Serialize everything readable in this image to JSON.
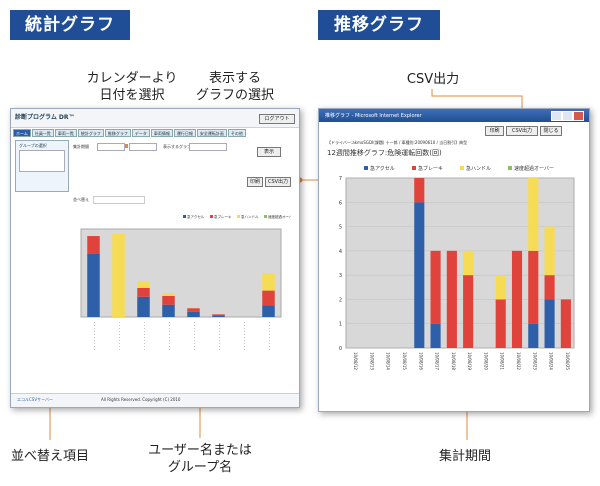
{
  "headers": {
    "stats": "統計グラフ",
    "trend": "推移グラフ"
  },
  "callouts": {
    "calendar": "カレンダーより\n日付を選択",
    "graph_select": "表示する\nグラフの選択",
    "csv": "CSV出力",
    "sort": "並べ替え項目",
    "user_group": "ユーザー名または\nグループ名",
    "period": "集計期間"
  },
  "left_window": {
    "app_title": "診断プログラム DR™",
    "logout": "ログアウト",
    "tabs": [
      "ホーム",
      "社員一覧",
      "車両一覧",
      "統計グラフ",
      "推移グラフ",
      "データ",
      "車両情報",
      "運行日報",
      "安全運転計画",
      "その他"
    ],
    "side_title": "グループの選択",
    "period_label": "集計期間",
    "graph_label": "表示するグラフ",
    "display_button": "表示",
    "print_button": "印刷",
    "csv_button": "CSV出力",
    "sort_label": "並べ替え",
    "footer_left": "エコルCSVサーバー",
    "footer_copy": "All Rights Reserved. Copyright (C) 2010"
  },
  "right_window": {
    "title": "推移グラフ - Microsoft Internet Explorer",
    "buttons": [
      "印刷",
      "CSV出力",
      "閉じる"
    ],
    "info": "【ドライバー:akmoSGDI(課題) 十一郎 / 車種別:20090610 / 当日割引】典型",
    "chart_title": "12週間推移グラフ:危険運転回数(回)"
  },
  "chart_data": [
    {
      "type": "bar",
      "stacked": true,
      "title": "",
      "legend_position": "top-right",
      "series": [
        {
          "name": "急アクセル",
          "color": "#2e5fa9",
          "values": [
            72,
            0,
            23,
            14,
            6,
            2,
            0,
            13
          ]
        },
        {
          "name": "急ブレーキ",
          "color": "#e0433b",
          "values": [
            20,
            0,
            10,
            10,
            4,
            1,
            0,
            17
          ]
        },
        {
          "name": "急ハンドル",
          "color": "#f6db55",
          "values": [
            0,
            95,
            7,
            3,
            1,
            0,
            0,
            20
          ]
        },
        {
          "name": "速度超過オーバー",
          "color": "#8dc05a",
          "values": [
            0,
            0,
            0,
            0,
            0,
            0,
            0,
            0
          ]
        }
      ]
    },
    {
      "type": "bar",
      "stacked": true,
      "title": "12週間推移グラフ:危険運転回数(回)",
      "ylim": [
        0,
        7
      ],
      "yticks": [
        0,
        1,
        2,
        3,
        4,
        5,
        6,
        7
      ],
      "categories": [
        "10/08/12",
        "10/08/13",
        "10/08/14",
        "10/08/15",
        "10/08/16",
        "10/08/17",
        "10/08/18",
        "10/08/19",
        "10/08/20",
        "10/08/21",
        "10/08/22",
        "10/08/23",
        "10/08/24",
        "10/08/25"
      ],
      "series": [
        {
          "name": "急アクセル",
          "color": "#2e5fa9",
          "values": [
            0,
            0,
            0,
            0,
            6,
            1,
            0,
            0,
            0,
            0,
            0,
            1,
            2,
            0
          ]
        },
        {
          "name": "急ブレーキ",
          "color": "#e0433b",
          "values": [
            0,
            0,
            0,
            0,
            1,
            3,
            4,
            3,
            0,
            2,
            4,
            3,
            1,
            2
          ]
        },
        {
          "name": "急ハンドル",
          "color": "#f6db55",
          "values": [
            0,
            0,
            0,
            0,
            0,
            0,
            0,
            1,
            0,
            1,
            0,
            3,
            2,
            0
          ]
        },
        {
          "name": "速度超過オーバー",
          "color": "#8dc05a",
          "values": [
            0,
            0,
            0,
            0,
            0,
            0,
            0,
            0,
            0,
            0,
            0,
            0,
            0,
            0
          ]
        }
      ]
    }
  ]
}
